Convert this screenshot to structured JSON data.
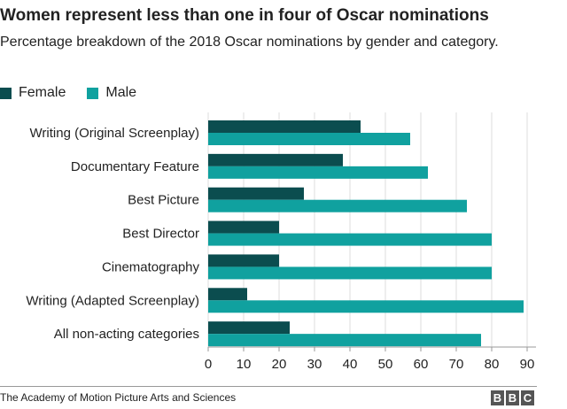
{
  "header": {
    "title": "Women represent less than one in four of Oscar nominations",
    "subtitle": "Percentage breakdown of the 2018 Oscar nominations by gender and category."
  },
  "legend": {
    "female_label": "Female",
    "male_label": "Male"
  },
  "footer": {
    "source": "The Academy of Motion Picture Arts and Sciences",
    "logo_letters": [
      "B",
      "B",
      "C"
    ]
  },
  "colors": {
    "female": "#0b4d4f",
    "male": "#10a19f",
    "grid": "#dddddd",
    "axis": "#999999"
  },
  "chart_data": {
    "type": "bar",
    "orientation": "horizontal",
    "categories": [
      "Writing (Original Screenplay)",
      "Documentary Feature",
      "Best Picture",
      "Best Director",
      "Cinematography",
      "Writing (Adapted Screenplay)",
      "All non-acting categories"
    ],
    "series": [
      {
        "name": "Female",
        "values": [
          43,
          38,
          27,
          20,
          20,
          11,
          23
        ]
      },
      {
        "name": "Male",
        "values": [
          57,
          62,
          73,
          80,
          80,
          89,
          77
        ]
      }
    ],
    "xlim": [
      0,
      90
    ],
    "xticks": [
      0,
      10,
      20,
      30,
      40,
      50,
      60,
      70,
      80,
      90
    ],
    "grid": true,
    "legend_position": "top-left"
  }
}
